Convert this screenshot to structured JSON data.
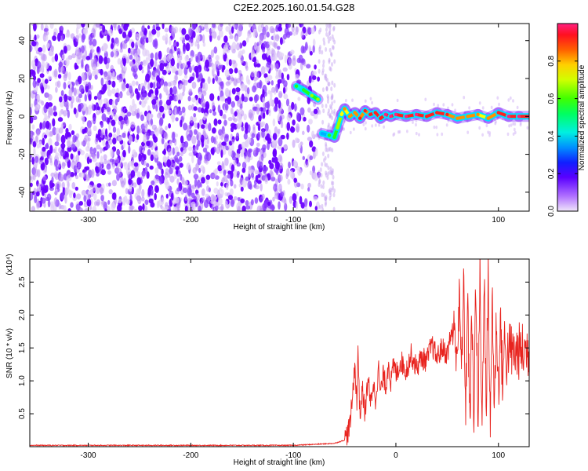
{
  "title": "C2E2.2025.160.01.54.G28",
  "colors": {
    "spectrogram_noise": "#6a00ff",
    "ridge": "#ff2a2a",
    "snr_line": "#e8231e",
    "colormap": [
      "#e8d8f6",
      "#c8a0f0",
      "#7a28ff",
      "#1010ff",
      "#00b0ff",
      "#00ffd0",
      "#20ff20",
      "#a0ff00",
      "#ffff00",
      "#ff9000",
      "#ff2020",
      "#ff2080"
    ]
  },
  "chart_data": [
    {
      "type": "heatmap",
      "name": "spectrogram",
      "xlabel": "Height of straight line (km)",
      "ylabel": "Frequency (Hz)",
      "xlim": [
        -357,
        130
      ],
      "ylim": [
        -50,
        49
      ],
      "xticks": [
        "-300",
        "-200",
        "-100",
        "0",
        "100"
      ],
      "yticks": [
        "40",
        "20",
        "0",
        "-20",
        "-40"
      ],
      "noise_region_x": [
        -357,
        -75
      ],
      "ridge": {
        "x": [
          -97,
          -90,
          -82,
          -76,
          -72,
          -65,
          -60,
          -57,
          -53,
          -50,
          -45,
          -40,
          -35,
          -30,
          -25,
          -20,
          -15,
          -10,
          -5,
          0,
          10,
          20,
          30,
          40,
          50,
          60,
          70,
          80,
          90,
          100,
          110,
          120,
          130
        ],
        "y": [
          16,
          14,
          11,
          9,
          -9,
          -10,
          -11,
          -6,
          1,
          4,
          0,
          2,
          -1,
          3,
          1,
          2,
          -1,
          1,
          0,
          1,
          0,
          1,
          0,
          2,
          1,
          -1,
          0,
          1,
          -1,
          2,
          0,
          0,
          0
        ],
        "amplitude": [
          0.45,
          0.5,
          0.55,
          0.6,
          0.35,
          0.45,
          0.5,
          0.6,
          0.7,
          0.75,
          0.8,
          0.8,
          0.85,
          0.85,
          0.9,
          0.9,
          0.9,
          0.95,
          0.95,
          0.95,
          0.95,
          0.95,
          0.9,
          0.9,
          0.85,
          0.8,
          0.8,
          0.75,
          0.8,
          0.9,
          0.95,
          0.95,
          0.95
        ]
      },
      "colorbar": {
        "label": "Normalized spectral amplitude",
        "range": [
          0,
          1
        ],
        "ticks": [
          "0.0",
          "0.2",
          "0.4",
          "0.6",
          "0.8"
        ]
      }
    },
    {
      "type": "line",
      "name": "snr",
      "xlabel": "Height of straight line (km)",
      "ylabel": "SNR (10 * v/v)",
      "scale_label": "(x10⁴)",
      "xlim": [
        -357,
        130
      ],
      "ylim": [
        0,
        2.85
      ],
      "xticks": [
        "-300",
        "-200",
        "-100",
        "0",
        "100"
      ],
      "yticks": [
        "0.5",
        "1.0",
        "1.5",
        "2.0",
        "2.5"
      ],
      "series": [
        {
          "x": [
            -357,
            -300,
            -200,
            -100,
            -60,
            -50,
            -45,
            -42,
            -40,
            -38,
            -37,
            -35,
            -33,
            -30,
            -27,
            -25,
            -22,
            -20,
            -17,
            -15,
            -12,
            -10,
            -7,
            -5,
            -2,
            0,
            5,
            10,
            15,
            20,
            25,
            30,
            35,
            40,
            45,
            50,
            55,
            60,
            62,
            64,
            66,
            68,
            70,
            72,
            74,
            76,
            78,
            80,
            82,
            84,
            86,
            88,
            90,
            92,
            94,
            96,
            98,
            100,
            102,
            104,
            106,
            108,
            110,
            115,
            120,
            125,
            130
          ],
          "y": [
            0.02,
            0.02,
            0.02,
            0.02,
            0.05,
            0.1,
            0.3,
            0.8,
            1.3,
            0.6,
            1.55,
            0.4,
            0.9,
            0.5,
            1.1,
            0.6,
            1.0,
            0.7,
            1.2,
            0.8,
            1.1,
            0.9,
            1.3,
            0.95,
            1.25,
            1.1,
            1.3,
            1.15,
            1.4,
            1.2,
            1.35,
            1.3,
            1.55,
            1.35,
            1.5,
            1.4,
            1.8,
            1.5,
            2.2,
            1.1,
            2.5,
            0.6,
            2.3,
            0.3,
            1.9,
            0.5,
            2.6,
            0.2,
            2.7,
            0.1,
            2.9,
            0.4,
            2.8,
            0.1,
            2.4,
            0.5,
            2.0,
            0.8,
            1.9,
            1.0,
            1.6,
            1.3,
            1.5,
            1.4,
            1.45,
            1.45,
            1.48
          ]
        }
      ]
    }
  ]
}
